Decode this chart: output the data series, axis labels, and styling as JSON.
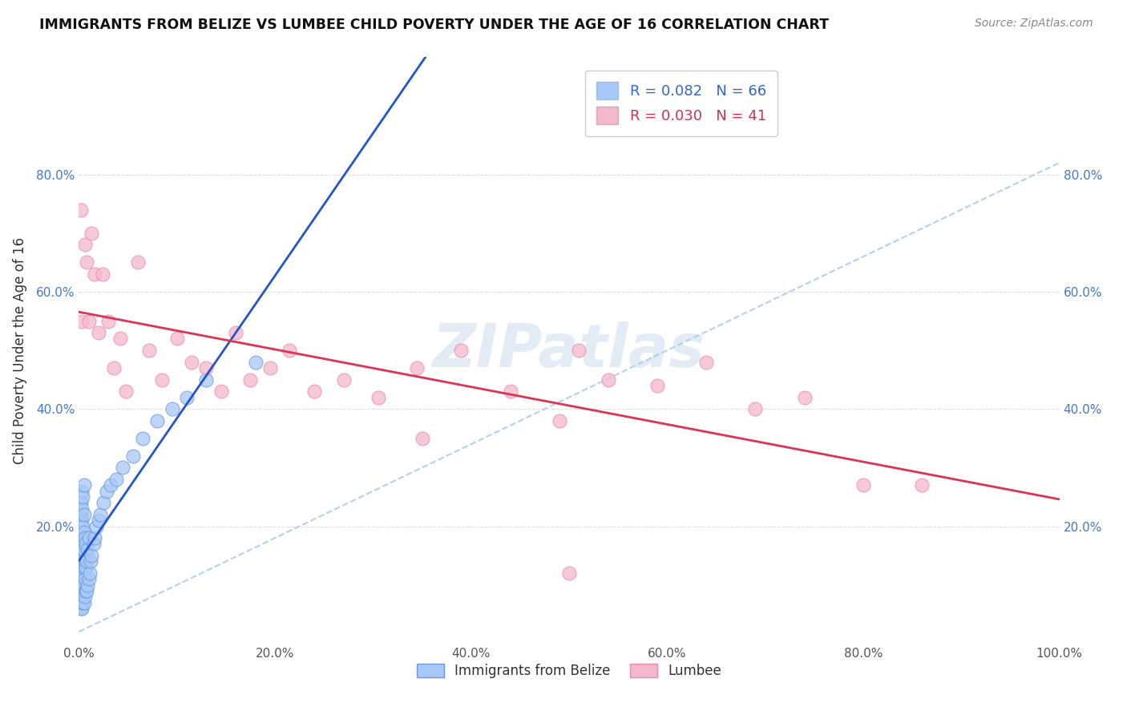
{
  "title": "IMMIGRANTS FROM BELIZE VS LUMBEE CHILD POVERTY UNDER THE AGE OF 16 CORRELATION CHART",
  "source": "Source: ZipAtlas.com",
  "ylabel": "Child Poverty Under the Age of 16",
  "xlim": [
    0.0,
    1.0
  ],
  "ylim": [
    0.0,
    1.0
  ],
  "xtick_positions": [
    0.0,
    0.2,
    0.4,
    0.6,
    0.8,
    1.0
  ],
  "xtick_labels": [
    "0.0%",
    "20.0%",
    "40.0%",
    "60.0%",
    "80.0%",
    "100.0%"
  ],
  "ytick_positions": [
    0.0,
    0.2,
    0.4,
    0.6,
    0.8,
    1.0
  ],
  "ytick_labels": [
    "",
    "20.0%",
    "40.0%",
    "60.0%",
    "80.0%",
    ""
  ],
  "watermark": "ZIPatlas",
  "belize_R": 0.082,
  "belize_N": 66,
  "lumbee_R": 0.03,
  "lumbee_N": 41,
  "belize_color": "#a8c8f8",
  "lumbee_color": "#f4b8cc",
  "belize_edge_color": "#6699dd",
  "lumbee_edge_color": "#ee88aa",
  "belize_line_color": "#2255cc",
  "lumbee_line_color": "#dd3355",
  "dash_line_color": "#aaccee",
  "grid_color": "#dddddd",
  "background_color": "#ffffff",
  "belize_x": [
    0.002,
    0.002,
    0.002,
    0.002,
    0.002,
    0.002,
    0.002,
    0.002,
    0.002,
    0.002,
    0.003,
    0.003,
    0.003,
    0.003,
    0.003,
    0.003,
    0.003,
    0.003,
    0.003,
    0.004,
    0.004,
    0.004,
    0.004,
    0.004,
    0.004,
    0.004,
    0.005,
    0.005,
    0.005,
    0.005,
    0.005,
    0.005,
    0.005,
    0.006,
    0.006,
    0.006,
    0.006,
    0.007,
    0.007,
    0.007,
    0.008,
    0.008,
    0.009,
    0.009,
    0.01,
    0.01,
    0.011,
    0.012,
    0.013,
    0.015,
    0.016,
    0.018,
    0.02,
    0.022,
    0.025,
    0.028,
    0.032,
    0.038,
    0.045,
    0.055,
    0.065,
    0.08,
    0.095,
    0.11,
    0.13,
    0.18
  ],
  "belize_y": [
    0.06,
    0.08,
    0.1,
    0.12,
    0.13,
    0.15,
    0.17,
    0.19,
    0.22,
    0.24,
    0.06,
    0.08,
    0.1,
    0.14,
    0.16,
    0.18,
    0.21,
    0.23,
    0.26,
    0.07,
    0.09,
    0.12,
    0.14,
    0.17,
    0.2,
    0.25,
    0.07,
    0.1,
    0.13,
    0.16,
    0.19,
    0.22,
    0.27,
    0.08,
    0.11,
    0.14,
    0.18,
    0.09,
    0.13,
    0.17,
    0.09,
    0.14,
    0.1,
    0.16,
    0.11,
    0.18,
    0.12,
    0.14,
    0.15,
    0.17,
    0.18,
    0.2,
    0.21,
    0.22,
    0.24,
    0.26,
    0.27,
    0.28,
    0.3,
    0.32,
    0.35,
    0.38,
    0.4,
    0.42,
    0.45,
    0.48
  ],
  "lumbee_x": [
    0.002,
    0.003,
    0.006,
    0.008,
    0.01,
    0.013,
    0.016,
    0.02,
    0.024,
    0.03,
    0.036,
    0.042,
    0.048,
    0.06,
    0.072,
    0.085,
    0.1,
    0.115,
    0.13,
    0.145,
    0.16,
    0.175,
    0.195,
    0.215,
    0.24,
    0.27,
    0.305,
    0.345,
    0.39,
    0.44,
    0.49,
    0.51,
    0.54,
    0.59,
    0.64,
    0.69,
    0.74,
    0.8,
    0.86,
    0.5,
    0.35
  ],
  "lumbee_y": [
    0.74,
    0.55,
    0.68,
    0.65,
    0.55,
    0.7,
    0.63,
    0.53,
    0.63,
    0.55,
    0.47,
    0.52,
    0.43,
    0.65,
    0.5,
    0.45,
    0.52,
    0.48,
    0.47,
    0.43,
    0.53,
    0.45,
    0.47,
    0.5,
    0.43,
    0.45,
    0.42,
    0.47,
    0.5,
    0.43,
    0.38,
    0.5,
    0.45,
    0.44,
    0.48,
    0.4,
    0.42,
    0.27,
    0.27,
    0.12,
    0.35
  ]
}
